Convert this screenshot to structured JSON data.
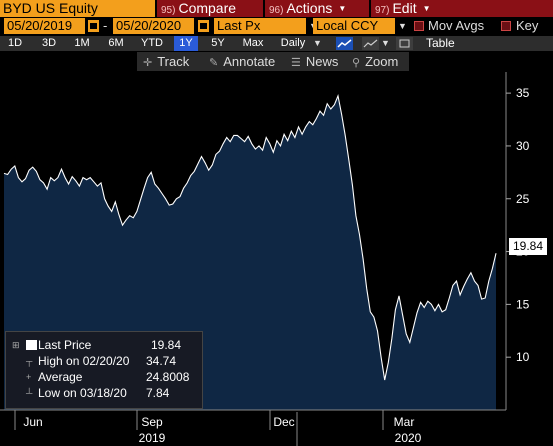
{
  "header": {
    "ticker": "BYD US Equity",
    "compare": {
      "num": "95)",
      "label": "Compare"
    },
    "actions": {
      "num": "96)",
      "label": "Actions"
    },
    "edit": {
      "num": "97)",
      "label": "Edit"
    }
  },
  "fields": {
    "start_date": "05/20/2019",
    "end_date": "05/20/2020",
    "field": "Last Px",
    "currency": "Local CCY",
    "mov_avgs_label": "Mov Avgs",
    "key_label": "Key"
  },
  "periods": [
    "1D",
    "3D",
    "1M",
    "6M",
    "YTD",
    "1Y",
    "5Y",
    "Max"
  ],
  "active_period": "1Y",
  "frequency": "Daily",
  "table_label": "Table",
  "tools": {
    "track": "Track",
    "annotate": "Annotate",
    "news": "News",
    "zoom": "Zoom"
  },
  "legend": {
    "last_price": {
      "label": "Last Price",
      "value": "19.84"
    },
    "high": {
      "label": "High on 02/20/20",
      "value": "34.74"
    },
    "average": {
      "label": "Average",
      "value": "24.8008"
    },
    "low": {
      "label": "Low on 03/18/20",
      "value": "7.84"
    }
  },
  "last_value_label": "19.84",
  "colors": {
    "accent_orange": "#f39f1c",
    "action_red": "#8a1016",
    "area_fill": "#0f2744",
    "line": "#ffffff",
    "active_period": "#2a5bd8"
  },
  "chart_data": {
    "type": "area",
    "series": [
      {
        "name": "Last Price",
        "values": [
          27.4,
          27.3,
          27.8,
          28.1,
          27.0,
          26.6,
          26.9,
          27.7,
          28.0,
          27.6,
          26.8,
          26.5,
          25.9,
          27.0,
          26.7,
          27.0,
          27.8,
          27.0,
          26.4,
          27.1,
          26.7,
          26.2,
          27.0,
          26.8,
          27.0,
          26.6,
          26.2,
          26.5,
          25.0,
          24.3,
          23.8,
          24.7,
          23.5,
          22.5,
          23.0,
          23.4,
          23.2,
          23.8,
          24.9,
          26.0,
          27.0,
          27.5,
          26.4,
          26.0,
          25.5,
          25.0,
          24.4,
          24.5,
          25.0,
          25.2,
          26.0,
          26.5,
          27.2,
          27.6,
          28.3,
          29.0,
          28.4,
          27.7,
          28.2,
          29.2,
          29.5,
          30.2,
          30.8,
          30.4,
          31.0,
          31.0,
          30.7,
          30.4,
          30.9,
          30.2,
          29.7,
          30.0,
          29.6,
          30.8,
          30.2,
          29.4,
          30.5,
          30.0,
          31.1,
          30.5,
          31.4,
          30.8,
          31.8,
          31.1,
          31.8,
          32.3,
          32.0,
          32.6,
          33.3,
          32.9,
          34.0,
          33.5,
          33.9,
          34.74,
          33.0,
          31.0,
          28.7,
          26.3,
          23.4,
          21.6,
          19.3,
          16.5,
          14.3,
          13.8,
          12.5,
          10.0,
          7.84,
          9.5,
          11.8,
          14.5,
          15.8,
          14.0,
          12.2,
          11.4,
          12.8,
          14.2,
          15.2,
          14.7,
          15.3,
          15.0,
          14.4,
          15.0,
          14.3,
          14.5,
          15.6,
          16.8,
          17.2,
          15.9,
          16.7,
          17.4,
          18.0,
          17.2,
          16.8,
          15.5,
          15.6,
          17.2,
          18.4,
          19.84
        ]
      }
    ],
    "x_range": [
      "2019-05-20",
      "2020-05-20"
    ],
    "x_tick_labels": [
      "Jun",
      "Sep",
      "Dec",
      "Mar"
    ],
    "x_year_labels": [
      "2019",
      "2020"
    ],
    "y_ticks": [
      10,
      15,
      20,
      25,
      30,
      35
    ],
    "ylim": [
      5,
      37
    ],
    "grid": false,
    "legend_position": "bottom-left"
  }
}
